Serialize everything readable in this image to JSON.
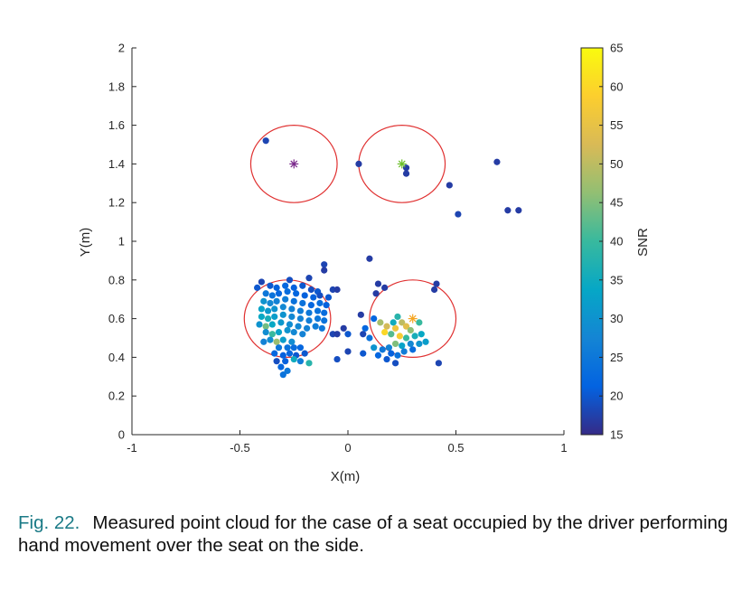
{
  "caption": {
    "number": "Fig. 22.",
    "text": "Measured point cloud for the case of a seat occupied by the driver performing hand movement over the seat on the side."
  },
  "chart_data": {
    "type": "scatter",
    "title": "",
    "xlabel": "X(m)",
    "ylabel": "Y(m)",
    "xlim": [
      -1,
      1
    ],
    "ylim": [
      0,
      2
    ],
    "xticks": [
      "-1",
      "-0.5",
      "0",
      "0.5",
      "1"
    ],
    "yticks": [
      "0",
      "0.2",
      "0.4",
      "0.6",
      "0.8",
      "1",
      "1.2",
      "1.4",
      "1.6",
      "1.8",
      "2"
    ],
    "grid": false,
    "colorbar": {
      "label": "SNR",
      "range": [
        15,
        65
      ],
      "ticks": [
        "15",
        "20",
        "25",
        "30",
        "35",
        "40",
        "45",
        "50",
        "55",
        "60",
        "65"
      ],
      "colormap": "parula"
    },
    "circle_color": "#e03030",
    "circles": [
      {
        "cx": -0.25,
        "cy": 1.4,
        "r": 0.2
      },
      {
        "cx": 0.25,
        "cy": 1.4,
        "r": 0.2
      },
      {
        "cx": -0.28,
        "cy": 0.6,
        "r": 0.2
      },
      {
        "cx": 0.3,
        "cy": 0.6,
        "r": 0.2
      }
    ],
    "centers": [
      {
        "x": -0.25,
        "y": 1.4,
        "color": "#7b2a8c"
      },
      {
        "x": 0.25,
        "y": 1.4,
        "color": "#6cbf2a"
      },
      {
        "x": 0.3,
        "y": 0.6,
        "color": "#f5a623"
      }
    ],
    "points": [
      {
        "x": -0.38,
        "y": 1.52,
        "snr": 18
      },
      {
        "x": 0.05,
        "y": 1.4,
        "snr": 17
      },
      {
        "x": 0.27,
        "y": 1.38,
        "snr": 17
      },
      {
        "x": 0.27,
        "y": 1.35,
        "snr": 17
      },
      {
        "x": 0.47,
        "y": 1.29,
        "snr": 17
      },
      {
        "x": 0.51,
        "y": 1.14,
        "snr": 18
      },
      {
        "x": 0.69,
        "y": 1.41,
        "snr": 17
      },
      {
        "x": 0.74,
        "y": 1.16,
        "snr": 17
      },
      {
        "x": 0.79,
        "y": 1.16,
        "snr": 17
      },
      {
        "x": 0.1,
        "y": 0.91,
        "snr": 17
      },
      {
        "x": -0.11,
        "y": 0.88,
        "snr": 18
      },
      {
        "x": -0.11,
        "y": 0.85,
        "snr": 17
      },
      {
        "x": -0.18,
        "y": 0.81,
        "snr": 18
      },
      {
        "x": -0.27,
        "y": 0.8,
        "snr": 19
      },
      {
        "x": -0.4,
        "y": 0.79,
        "snr": 18
      },
      {
        "x": -0.42,
        "y": 0.76,
        "snr": 20
      },
      {
        "x": -0.36,
        "y": 0.77,
        "snr": 20
      },
      {
        "x": -0.33,
        "y": 0.76,
        "snr": 21
      },
      {
        "x": -0.29,
        "y": 0.77,
        "snr": 22
      },
      {
        "x": -0.25,
        "y": 0.76,
        "snr": 21
      },
      {
        "x": -0.21,
        "y": 0.77,
        "snr": 20
      },
      {
        "x": -0.17,
        "y": 0.75,
        "snr": 19
      },
      {
        "x": -0.14,
        "y": 0.74,
        "snr": 20
      },
      {
        "x": -0.07,
        "y": 0.75,
        "snr": 18
      },
      {
        "x": -0.05,
        "y": 0.75,
        "snr": 17
      },
      {
        "x": -0.38,
        "y": 0.73,
        "snr": 25
      },
      {
        "x": -0.35,
        "y": 0.72,
        "snr": 24
      },
      {
        "x": -0.32,
        "y": 0.73,
        "snr": 22
      },
      {
        "x": -0.28,
        "y": 0.74,
        "snr": 23
      },
      {
        "x": -0.24,
        "y": 0.73,
        "snr": 22
      },
      {
        "x": -0.2,
        "y": 0.72,
        "snr": 21
      },
      {
        "x": -0.16,
        "y": 0.71,
        "snr": 21
      },
      {
        "x": -0.13,
        "y": 0.72,
        "snr": 19
      },
      {
        "x": -0.09,
        "y": 0.71,
        "snr": 20
      },
      {
        "x": -0.39,
        "y": 0.69,
        "snr": 30
      },
      {
        "x": -0.36,
        "y": 0.68,
        "snr": 28
      },
      {
        "x": -0.33,
        "y": 0.69,
        "snr": 27
      },
      {
        "x": -0.29,
        "y": 0.7,
        "snr": 26
      },
      {
        "x": -0.25,
        "y": 0.69,
        "snr": 24
      },
      {
        "x": -0.21,
        "y": 0.68,
        "snr": 24
      },
      {
        "x": -0.17,
        "y": 0.67,
        "snr": 22
      },
      {
        "x": -0.13,
        "y": 0.68,
        "snr": 23
      },
      {
        "x": -0.1,
        "y": 0.67,
        "snr": 21
      },
      {
        "x": -0.4,
        "y": 0.65,
        "snr": 33
      },
      {
        "x": -0.37,
        "y": 0.64,
        "snr": 31
      },
      {
        "x": -0.34,
        "y": 0.65,
        "snr": 30
      },
      {
        "x": -0.3,
        "y": 0.66,
        "snr": 28
      },
      {
        "x": -0.26,
        "y": 0.65,
        "snr": 27
      },
      {
        "x": -0.22,
        "y": 0.64,
        "snr": 26
      },
      {
        "x": -0.18,
        "y": 0.63,
        "snr": 25
      },
      {
        "x": -0.14,
        "y": 0.64,
        "snr": 24
      },
      {
        "x": -0.11,
        "y": 0.63,
        "snr": 23
      },
      {
        "x": -0.4,
        "y": 0.61,
        "snr": 34
      },
      {
        "x": -0.37,
        "y": 0.6,
        "snr": 36
      },
      {
        "x": -0.34,
        "y": 0.61,
        "snr": 32
      },
      {
        "x": -0.3,
        "y": 0.62,
        "snr": 30
      },
      {
        "x": -0.26,
        "y": 0.61,
        "snr": 28
      },
      {
        "x": -0.22,
        "y": 0.6,
        "snr": 27
      },
      {
        "x": -0.18,
        "y": 0.59,
        "snr": 26
      },
      {
        "x": -0.14,
        "y": 0.6,
        "snr": 25
      },
      {
        "x": -0.11,
        "y": 0.59,
        "snr": 24
      },
      {
        "x": -0.41,
        "y": 0.57,
        "snr": 30
      },
      {
        "x": -0.38,
        "y": 0.56,
        "snr": 44
      },
      {
        "x": -0.35,
        "y": 0.57,
        "snr": 34
      },
      {
        "x": -0.31,
        "y": 0.58,
        "snr": 31
      },
      {
        "x": -0.27,
        "y": 0.57,
        "snr": 29
      },
      {
        "x": -0.23,
        "y": 0.56,
        "snr": 28
      },
      {
        "x": -0.19,
        "y": 0.55,
        "snr": 27
      },
      {
        "x": -0.15,
        "y": 0.56,
        "snr": 26
      },
      {
        "x": -0.12,
        "y": 0.55,
        "snr": 25
      },
      {
        "x": -0.38,
        "y": 0.53,
        "snr": 29
      },
      {
        "x": -0.35,
        "y": 0.52,
        "snr": 40
      },
      {
        "x": -0.32,
        "y": 0.53,
        "snr": 33
      },
      {
        "x": -0.28,
        "y": 0.54,
        "snr": 30
      },
      {
        "x": -0.25,
        "y": 0.53,
        "snr": 28
      },
      {
        "x": -0.21,
        "y": 0.52,
        "snr": 27
      },
      {
        "x": -0.36,
        "y": 0.49,
        "snr": 29
      },
      {
        "x": -0.33,
        "y": 0.48,
        "snr": 47
      },
      {
        "x": -0.3,
        "y": 0.49,
        "snr": 32
      },
      {
        "x": -0.26,
        "y": 0.48,
        "snr": 29
      },
      {
        "x": -0.39,
        "y": 0.48,
        "snr": 27
      },
      {
        "x": -0.32,
        "y": 0.45,
        "snr": 25
      },
      {
        "x": -0.28,
        "y": 0.45,
        "snr": 24
      },
      {
        "x": -0.25,
        "y": 0.45,
        "snr": 23
      },
      {
        "x": -0.22,
        "y": 0.45,
        "snr": 22
      },
      {
        "x": -0.34,
        "y": 0.42,
        "snr": 22
      },
      {
        "x": -0.3,
        "y": 0.41,
        "snr": 21
      },
      {
        "x": -0.27,
        "y": 0.42,
        "snr": 22
      },
      {
        "x": -0.24,
        "y": 0.41,
        "snr": 20
      },
      {
        "x": -0.2,
        "y": 0.42,
        "snr": 20
      },
      {
        "x": -0.33,
        "y": 0.38,
        "snr": 19
      },
      {
        "x": -0.29,
        "y": 0.38,
        "snr": 21
      },
      {
        "x": -0.25,
        "y": 0.39,
        "snr": 35
      },
      {
        "x": -0.22,
        "y": 0.38,
        "snr": 26
      },
      {
        "x": -0.18,
        "y": 0.37,
        "snr": 38
      },
      {
        "x": -0.31,
        "y": 0.35,
        "snr": 22
      },
      {
        "x": -0.28,
        "y": 0.33,
        "snr": 25
      },
      {
        "x": -0.3,
        "y": 0.31,
        "snr": 24
      },
      {
        "x": -0.07,
        "y": 0.52,
        "snr": 18
      },
      {
        "x": -0.05,
        "y": 0.52,
        "snr": 17
      },
      {
        "x": -0.02,
        "y": 0.55,
        "snr": 17
      },
      {
        "x": 0.0,
        "y": 0.52,
        "snr": 20
      },
      {
        "x": 0.07,
        "y": 0.52,
        "snr": 18
      },
      {
        "x": 0.1,
        "y": 0.5,
        "snr": 24
      },
      {
        "x": 0.08,
        "y": 0.55,
        "snr": 22
      },
      {
        "x": 0.06,
        "y": 0.62,
        "snr": 17
      },
      {
        "x": 0.0,
        "y": 0.43,
        "snr": 18
      },
      {
        "x": -0.05,
        "y": 0.39,
        "snr": 19
      },
      {
        "x": 0.07,
        "y": 0.42,
        "snr": 20
      },
      {
        "x": 0.14,
        "y": 0.78,
        "snr": 17
      },
      {
        "x": 0.17,
        "y": 0.76,
        "snr": 17
      },
      {
        "x": 0.13,
        "y": 0.73,
        "snr": 17
      },
      {
        "x": 0.41,
        "y": 0.78,
        "snr": 17
      },
      {
        "x": 0.4,
        "y": 0.75,
        "snr": 17
      },
      {
        "x": 0.12,
        "y": 0.45,
        "snr": 30
      },
      {
        "x": 0.15,
        "y": 0.58,
        "snr": 48
      },
      {
        "x": 0.18,
        "y": 0.56,
        "snr": 52
      },
      {
        "x": 0.21,
        "y": 0.58,
        "snr": 35
      },
      {
        "x": 0.23,
        "y": 0.61,
        "snr": 38
      },
      {
        "x": 0.22,
        "y": 0.55,
        "snr": 56
      },
      {
        "x": 0.25,
        "y": 0.58,
        "snr": 50
      },
      {
        "x": 0.27,
        "y": 0.56,
        "snr": 54
      },
      {
        "x": 0.29,
        "y": 0.54,
        "snr": 46
      },
      {
        "x": 0.17,
        "y": 0.53,
        "snr": 60
      },
      {
        "x": 0.2,
        "y": 0.52,
        "snr": 42
      },
      {
        "x": 0.24,
        "y": 0.51,
        "snr": 58
      },
      {
        "x": 0.27,
        "y": 0.5,
        "snr": 40
      },
      {
        "x": 0.31,
        "y": 0.51,
        "snr": 36
      },
      {
        "x": 0.34,
        "y": 0.52,
        "snr": 34
      },
      {
        "x": 0.36,
        "y": 0.48,
        "snr": 32
      },
      {
        "x": 0.33,
        "y": 0.47,
        "snr": 30
      },
      {
        "x": 0.29,
        "y": 0.47,
        "snr": 28
      },
      {
        "x": 0.25,
        "y": 0.46,
        "snr": 33
      },
      {
        "x": 0.22,
        "y": 0.47,
        "snr": 45
      },
      {
        "x": 0.19,
        "y": 0.45,
        "snr": 27
      },
      {
        "x": 0.16,
        "y": 0.44,
        "snr": 25
      },
      {
        "x": 0.14,
        "y": 0.41,
        "snr": 22
      },
      {
        "x": 0.2,
        "y": 0.42,
        "snr": 21
      },
      {
        "x": 0.23,
        "y": 0.41,
        "snr": 24
      },
      {
        "x": 0.26,
        "y": 0.43,
        "snr": 26
      },
      {
        "x": 0.3,
        "y": 0.44,
        "snr": 23
      },
      {
        "x": 0.18,
        "y": 0.39,
        "snr": 20
      },
      {
        "x": 0.22,
        "y": 0.37,
        "snr": 19
      },
      {
        "x": 0.42,
        "y": 0.37,
        "snr": 18
      },
      {
        "x": 0.12,
        "y": 0.6,
        "snr": 22
      },
      {
        "x": 0.33,
        "y": 0.58,
        "snr": 40
      }
    ]
  }
}
